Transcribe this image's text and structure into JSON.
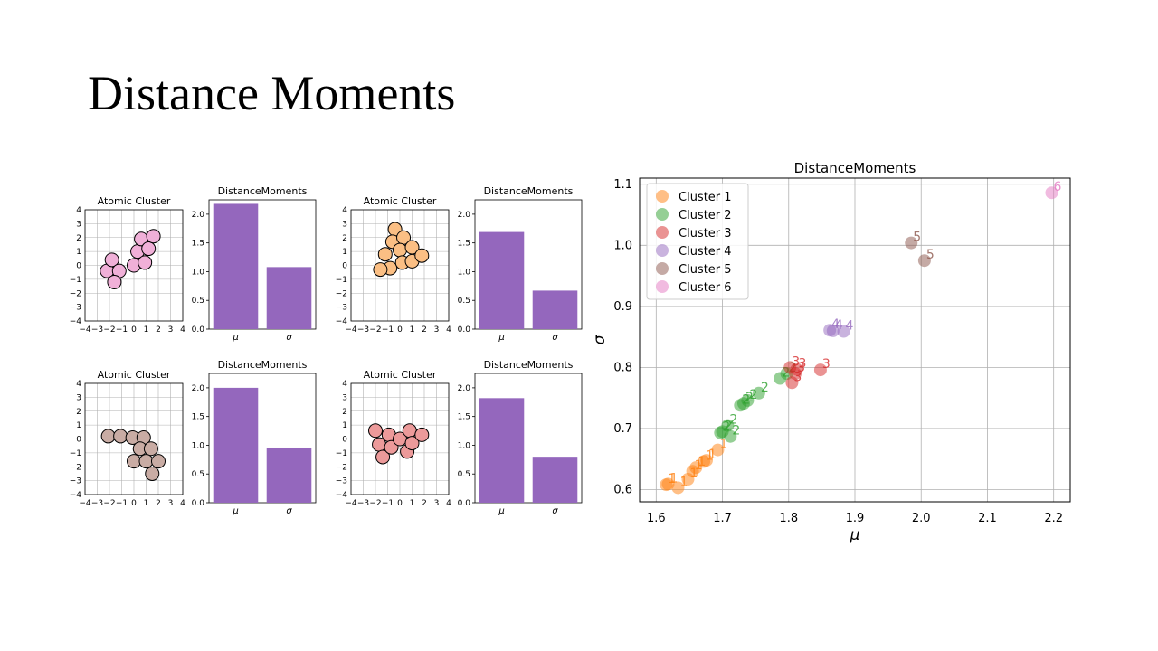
{
  "slide": {
    "title": "Distance Moments"
  },
  "colors": {
    "bar": "#9467bd",
    "grid": "#b0b0b0",
    "cluster": [
      "#ff7f0e",
      "#2ca02c",
      "#d62728",
      "#9467bd",
      "#8c564b",
      "#e377c2"
    ],
    "atom_fill": [
      "#f0b0d8",
      "#fbbf84",
      "#c9aca4",
      "#ec9a9a"
    ]
  },
  "chart_data": [
    {
      "type": "scatter",
      "title": "Atomic Cluster",
      "xlim": [
        -4,
        4
      ],
      "ylim": [
        -4,
        4
      ],
      "ticks": [
        "−4",
        "−3",
        "−2",
        "−1",
        "0",
        "1",
        "2",
        "3",
        "4"
      ],
      "grid": true,
      "points": [
        [
          -2.2,
          -0.4
        ],
        [
          -1.8,
          0.4
        ],
        [
          -1.2,
          -0.4
        ],
        [
          -1.6,
          -1.2
        ],
        [
          0,
          0
        ],
        [
          0.3,
          1.0
        ],
        [
          0.6,
          1.9
        ],
        [
          1.2,
          1.2
        ],
        [
          1.6,
          2.1
        ],
        [
          0.9,
          0.2
        ]
      ]
    },
    {
      "type": "bar",
      "title": "DistanceMoments",
      "categories": [
        "μ",
        "σ"
      ],
      "values": [
        2.18,
        1.08
      ],
      "ylim": [
        0,
        2.25
      ],
      "yticks": [
        "0.0",
        "0.5",
        "1.0",
        "1.5",
        "2.0"
      ]
    },
    {
      "type": "scatter",
      "title": "Atomic Cluster",
      "xlim": [
        -4,
        4
      ],
      "ylim": [
        -4,
        4
      ],
      "ticks": [
        "−4",
        "−3",
        "−2",
        "−1",
        "0",
        "1",
        "2",
        "3",
        "4"
      ],
      "grid": true,
      "points": [
        [
          -0.4,
          2.6
        ],
        [
          -0.6,
          1.7
        ],
        [
          0.3,
          2.0
        ],
        [
          -1.2,
          0.8
        ],
        [
          0,
          1.1
        ],
        [
          1.0,
          1.3
        ],
        [
          -0.8,
          -0.2
        ],
        [
          0.2,
          0.2
        ],
        [
          1.0,
          0.3
        ],
        [
          1.8,
          0.7
        ],
        [
          -1.6,
          -0.3
        ]
      ]
    },
    {
      "type": "bar",
      "title": "DistanceMoments",
      "categories": [
        "μ",
        "σ"
      ],
      "values": [
        1.69,
        0.67
      ],
      "ylim": [
        0,
        2.25
      ],
      "yticks": [
        "0.0",
        "0.5",
        "1.0",
        "1.5",
        "2.0"
      ]
    },
    {
      "type": "scatter",
      "title": "Atomic Cluster",
      "xlim": [
        -4,
        4
      ],
      "ylim": [
        -4,
        4
      ],
      "ticks": [
        "−4",
        "−3",
        "−2",
        "−1",
        "0",
        "1",
        "2",
        "3",
        "4"
      ],
      "grid": true,
      "points": [
        [
          -2.1,
          0.2
        ],
        [
          -1.1,
          0.2
        ],
        [
          -0.1,
          0.1
        ],
        [
          0.8,
          0.1
        ],
        [
          0.5,
          -0.7
        ],
        [
          1.4,
          -0.7
        ],
        [
          0,
          -1.6
        ],
        [
          1.0,
          -1.6
        ],
        [
          2.0,
          -1.6
        ],
        [
          1.5,
          -2.5
        ]
      ]
    },
    {
      "type": "bar",
      "title": "DistanceMoments",
      "categories": [
        "μ",
        "σ"
      ],
      "values": [
        2.0,
        0.96
      ],
      "ylim": [
        0,
        2.25
      ],
      "yticks": [
        "0.0",
        "0.5",
        "1.0",
        "1.5",
        "2.0"
      ]
    },
    {
      "type": "scatter",
      "title": "Atomic Cluster",
      "xlim": [
        -4,
        4
      ],
      "ylim": [
        -4,
        4
      ],
      "ticks": [
        "−4",
        "−3",
        "−2",
        "−1",
        "0",
        "1",
        "2",
        "3",
        "4"
      ],
      "grid": true,
      "points": [
        [
          -2.0,
          0.6
        ],
        [
          -1.7,
          -0.4
        ],
        [
          -1.4,
          -1.3
        ],
        [
          -0.9,
          0.3
        ],
        [
          -0.7,
          -0.6
        ],
        [
          0,
          0
        ],
        [
          0.6,
          -0.9
        ],
        [
          0.8,
          0.6
        ],
        [
          1.0,
          -0.3
        ],
        [
          1.8,
          0.3
        ]
      ]
    },
    {
      "type": "bar",
      "title": "DistanceMoments",
      "categories": [
        "μ",
        "σ"
      ],
      "values": [
        1.82,
        0.8
      ],
      "ylim": [
        0,
        2.25
      ],
      "yticks": [
        "0.0",
        "0.5",
        "1.0",
        "1.5",
        "2.0"
      ]
    },
    {
      "type": "scatter",
      "title": "DistanceMoments",
      "xlabel": "μ",
      "ylabel": "σ",
      "xlim": [
        1.575,
        2.225
      ],
      "ylim": [
        0.58,
        1.11
      ],
      "xticks": [
        1.6,
        1.7,
        1.8,
        1.9,
        2.0,
        2.1,
        2.2
      ],
      "yticks": [
        0.6,
        0.7,
        0.8,
        0.9,
        1.0,
        1.1
      ],
      "grid": true,
      "legend": "top-left",
      "series": [
        {
          "name": "Cluster 1",
          "label": "1",
          "points": [
            [
              1.615,
              0.608
            ],
            [
              1.618,
              0.609
            ],
            [
              1.633,
              0.603
            ],
            [
              1.648,
              0.617
            ],
            [
              1.655,
              0.63
            ],
            [
              1.66,
              0.636
            ],
            [
              1.672,
              0.646
            ],
            [
              1.676,
              0.648
            ],
            [
              1.693,
              0.665
            ]
          ]
        },
        {
          "name": "Cluster 2",
          "label": "2",
          "points": [
            [
              1.697,
              0.693
            ],
            [
              1.7,
              0.695
            ],
            [
              1.708,
              0.705
            ],
            [
              1.712,
              0.687
            ],
            [
              1.727,
              0.738
            ],
            [
              1.732,
              0.741
            ],
            [
              1.738,
              0.746
            ],
            [
              1.755,
              0.758
            ],
            [
              1.787,
              0.782
            ],
            [
              1.797,
              0.79
            ]
          ]
        },
        {
          "name": "Cluster 3",
          "label": "3",
          "points": [
            [
              1.802,
              0.8
            ],
            [
              1.805,
              0.775
            ],
            [
              1.81,
              0.79
            ],
            [
              1.812,
              0.797
            ],
            [
              1.848,
              0.796
            ]
          ]
        },
        {
          "name": "Cluster 4",
          "label": "4",
          "points": [
            [
              1.862,
              0.861
            ],
            [
              1.867,
              0.86
            ],
            [
              1.883,
              0.859
            ]
          ]
        },
        {
          "name": "Cluster 5",
          "label": "5",
          "points": [
            [
              1.985,
              1.004
            ],
            [
              2.005,
              0.975
            ]
          ]
        },
        {
          "name": "Cluster 6",
          "label": "6",
          "points": [
            [
              2.197,
              1.086
            ]
          ]
        }
      ]
    }
  ]
}
